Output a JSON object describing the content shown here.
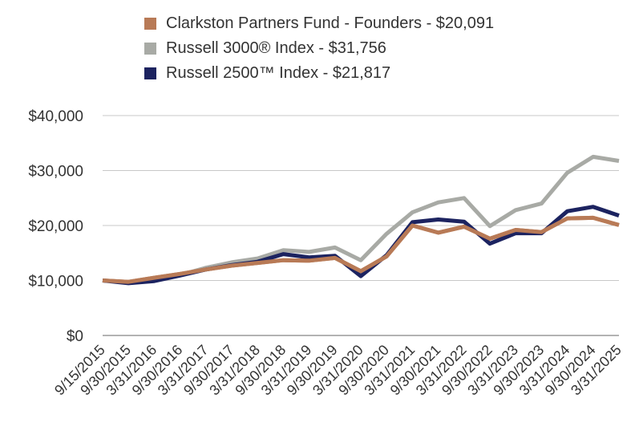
{
  "chart_data": {
    "type": "line",
    "title": "",
    "xlabel": "",
    "ylabel": "",
    "ylim": [
      0,
      40000
    ],
    "yticks": [
      0,
      10000,
      20000,
      30000,
      40000
    ],
    "ytick_labels": [
      "$0",
      "$10,000",
      "$20,000",
      "$30,000",
      "$40,000"
    ],
    "grid": "horizontal",
    "legend_position": "top",
    "x": [
      "9/15/2015",
      "9/30/2015",
      "3/31/2016",
      "9/30/2016",
      "3/31/2017",
      "9/30/2017",
      "3/31/2018",
      "9/30/2018",
      "3/31/2019",
      "9/30/2019",
      "3/31/2020",
      "9/30/2020",
      "3/31/2021",
      "9/30/2021",
      "3/31/2022",
      "9/30/2022",
      "3/31/2023",
      "9/30/2023",
      "3/31/2024",
      "9/30/2024",
      "3/31/2025"
    ],
    "series": [
      {
        "name": "Clarkston Partners Fund - Founders - $20,091",
        "color": "#b87a56",
        "values": [
          10000,
          9750,
          10500,
          11200,
          12000,
          12700,
          13200,
          13700,
          13600,
          14100,
          11700,
          14400,
          20000,
          18700,
          19800,
          17600,
          19200,
          18800,
          21300,
          21400,
          20091
        ]
      },
      {
        "name": "Russell 3000® Index - $31,756",
        "color": "#a8aaa5",
        "values": [
          10000,
          9700,
          10400,
          11000,
          12300,
          13300,
          14000,
          15500,
          15200,
          16000,
          13700,
          18500,
          22400,
          24200,
          25000,
          19900,
          22800,
          24000,
          29600,
          32500,
          31756
        ]
      },
      {
        "name": "Russell 2500™ Index - $21,817",
        "color": "#1c2360",
        "values": [
          10000,
          9500,
          9900,
          10900,
          12000,
          12800,
          13400,
          14800,
          14200,
          14500,
          10800,
          14600,
          20600,
          21100,
          20700,
          16700,
          18600,
          18600,
          22600,
          23400,
          21817
        ]
      }
    ]
  }
}
